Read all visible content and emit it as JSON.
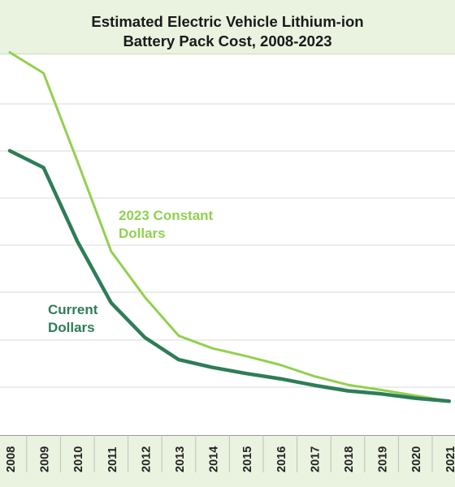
{
  "chart_data": {
    "type": "line",
    "title": "Estimated Electric Vehicle Lithium-ion",
    "subtitle": "Battery Pack Cost, 2008-2023",
    "xlabel": "",
    "ylabel": "",
    "grid": true,
    "legend": "inline",
    "categories": [
      "2008",
      "2009",
      "2010",
      "2011",
      "2012",
      "2013",
      "2014",
      "2015",
      "2016",
      "2017",
      "2018",
      "2019",
      "2020",
      "2021"
    ],
    "ylim": [
      0,
      1
    ],
    "series": [
      {
        "name": "2023 Constant Dollars",
        "label_lines": [
          "2023 Constant",
          "Dollars"
        ],
        "color": "#92d050",
        "values": [
          0.883,
          0.835,
          0.632,
          0.424,
          0.318,
          0.229,
          0.2,
          0.182,
          0.162,
          0.136,
          0.116,
          0.104,
          0.091,
          0.078
        ]
      },
      {
        "name": "Current Dollars",
        "label_lines": [
          "Current",
          "Dollars"
        ],
        "color": "#2e7d57",
        "values": [
          0.656,
          0.617,
          0.447,
          0.305,
          0.225,
          0.174,
          0.156,
          0.142,
          0.13,
          0.115,
          0.102,
          0.095,
          0.085,
          0.078
        ]
      }
    ]
  }
}
